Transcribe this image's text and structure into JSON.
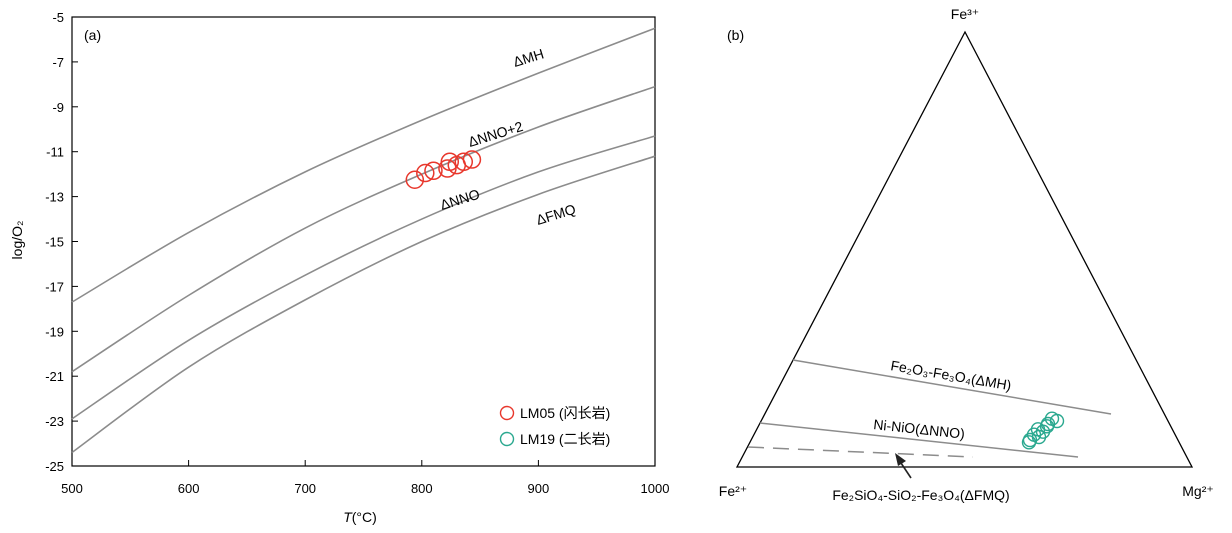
{
  "chart_data": [
    {
      "type": "line",
      "panel_label": "(a)",
      "xlabel": "T(°C)",
      "xlabel_italic": "T",
      "xlabel_rest": "(°C)",
      "ylabel": "log/O₂",
      "xlim": [
        500,
        1000
      ],
      "ylim": [
        -25,
        -5
      ],
      "xticks": [
        "500",
        "600",
        "700",
        "800",
        "900",
        "1000"
      ],
      "yticks": [
        "-5",
        "-7",
        "-9",
        "-11",
        "-13",
        "-15",
        "-17",
        "-19",
        "-21",
        "-23",
        "-25"
      ],
      "line_color": "#8c8c8c",
      "series": [
        {
          "name": "ΔMH",
          "x": [
            500,
            600,
            700,
            800,
            900,
            1000
          ],
          "y": [
            -17.7,
            -14.6,
            -11.9,
            -9.6,
            -7.5,
            -5.5
          ]
        },
        {
          "name": "ΔNNO+2",
          "x": [
            500,
            600,
            700,
            800,
            900,
            1000
          ],
          "y": [
            -20.8,
            -17.4,
            -14.4,
            -12.0,
            -9.9,
            -8.1
          ]
        },
        {
          "name": "ΔNNO",
          "x": [
            500,
            600,
            700,
            800,
            900,
            1000
          ],
          "y": [
            -22.9,
            -19.4,
            -16.5,
            -14.0,
            -11.9,
            -10.3
          ]
        },
        {
          "name": "ΔFMQ",
          "x": [
            500,
            600,
            700,
            800,
            900,
            1000
          ],
          "y": [
            -24.4,
            -20.6,
            -17.6,
            -15.0,
            -12.9,
            -11.2
          ]
        }
      ],
      "series_labels": [
        "ΔMH",
        "ΔNNO+2",
        "ΔNNO",
        "ΔFMQ"
      ],
      "points": {
        "name": "LM05 (闪长岩)",
        "color": "#e8372c",
        "x": [
          794,
          803,
          810,
          822,
          824,
          830,
          836,
          843
        ],
        "y": [
          -12.25,
          -11.95,
          -11.85,
          -11.75,
          -11.45,
          -11.6,
          -11.45,
          -11.35
        ]
      },
      "legend": [
        {
          "label": "LM05 (闪长岩)",
          "color": "#e8372c"
        },
        {
          "label": "LM19 (二长岩)",
          "color": "#2aa88f"
        }
      ],
      "legend_position": "bottom-right",
      "grid": false
    },
    {
      "type": "scatter",
      "subtype": "ternary",
      "panel_label": "(b)",
      "apex_top": "Fe³⁺",
      "apex_left": "Fe²⁺",
      "apex_right": "Mg²⁺",
      "buffer_lines": [
        {
          "label": "Fe₂O₃-Fe₃O₄(ΔMH)",
          "style": "solid"
        },
        {
          "label": "Ni-NiO(ΔNNO)",
          "style": "solid"
        },
        {
          "label": "Fe₂SiO₄-SiO₂-Fe₃O₄(ΔFMQ)",
          "style": "dashed"
        }
      ],
      "points": {
        "name": "LM19 (二长岩)",
        "color": "#2aa88f",
        "count": 10
      }
    }
  ]
}
